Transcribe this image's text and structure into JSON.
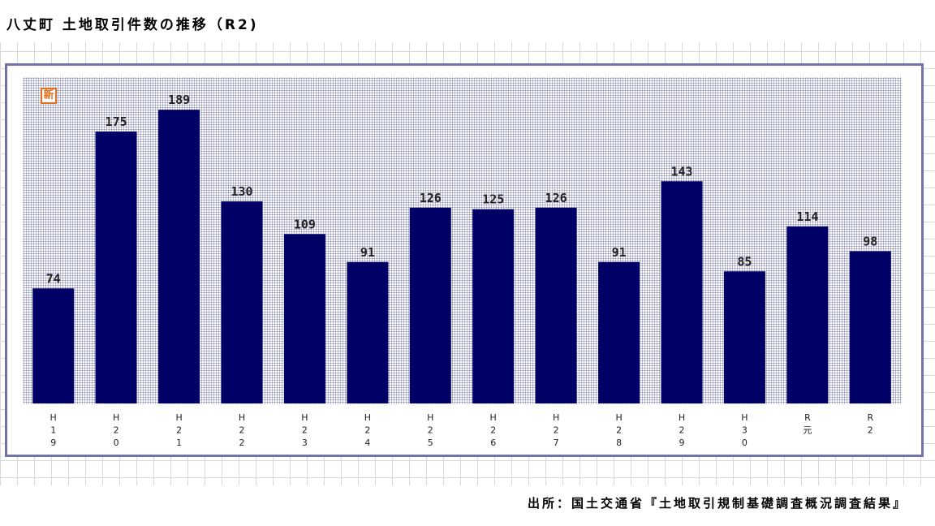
{
  "title": "八丈町 土地取引件数の推移（R2)",
  "badge": "新",
  "source": "出所：国土交通省『土地取引規制基礎調査概況調査結果』",
  "colors": {
    "bar": "#000066",
    "frame": "#7373a8",
    "badge": "#e07020"
  },
  "chart_data": {
    "type": "bar",
    "categories": [
      "H\n1\n9",
      "H\n2\n0",
      "H\n2\n1",
      "H\n2\n2",
      "H\n2\n3",
      "H\n2\n4",
      "H\n2\n5",
      "H\n2\n6",
      "H\n2\n7",
      "H\n2\n8",
      "H\n2\n9",
      "H\n3\n0",
      "R\n元",
      "R\n2"
    ],
    "values": [
      74,
      175,
      189,
      130,
      109,
      91,
      126,
      125,
      126,
      91,
      143,
      85,
      114,
      98
    ],
    "data_labels": true,
    "ylim": [
      0,
      210
    ],
    "grid": false,
    "legend": "none"
  }
}
